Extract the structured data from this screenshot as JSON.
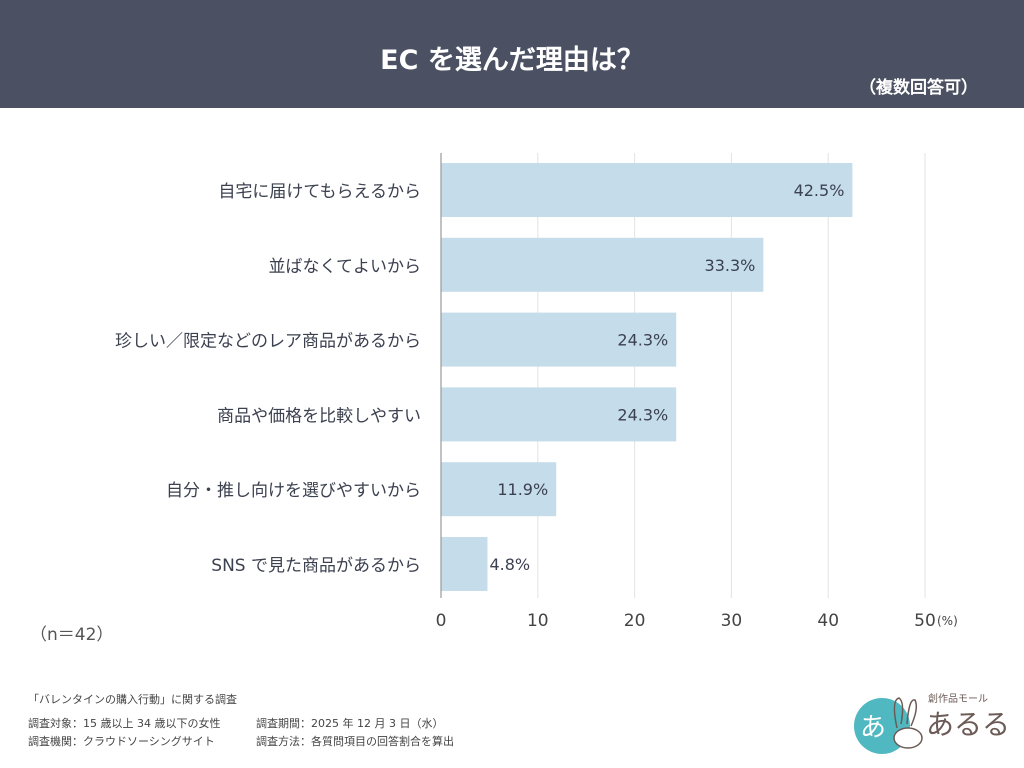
{
  "header": {
    "title": "EC を選んだ理由は？",
    "subtitle": "（複数回答可）"
  },
  "chart_data": {
    "type": "bar",
    "orientation": "horizontal",
    "categories": [
      "自宅に届けてもらえるから",
      "並ばなくてよいから",
      "珍しい／限定などのレア商品があるから",
      "商品や価格を比較しやすい",
      "自分・推し向けを選びやすいから",
      "SNS で見た商品があるから"
    ],
    "values": [
      42.5,
      33.3,
      24.3,
      24.3,
      11.9,
      4.8
    ],
    "data_labels": [
      "42.5%",
      "33.3%",
      "24.3%",
      "24.3%",
      "11.9%",
      "4.8%"
    ],
    "xticks": [
      "0",
      "10",
      "20",
      "30",
      "40",
      "50"
    ],
    "xunit": "(%)",
    "xlim": [
      0,
      50
    ],
    "grid": true,
    "bar_color": "#c5dcea"
  },
  "n_label": "（n＝42）",
  "footer": {
    "survey_title": "「バレンタインの購入行動」に関する調査",
    "target": "調査対象：15 歳以上 34 歳以下の女性",
    "period": "調査期間：2025 年 12 月 3 日（水）",
    "org": "調査機関：クラウドソーシングサイト",
    "method": "調査方法：各質問項目の回答割合を算出"
  },
  "logo": {
    "tagline": "創作品モール",
    "name": "あるる"
  }
}
